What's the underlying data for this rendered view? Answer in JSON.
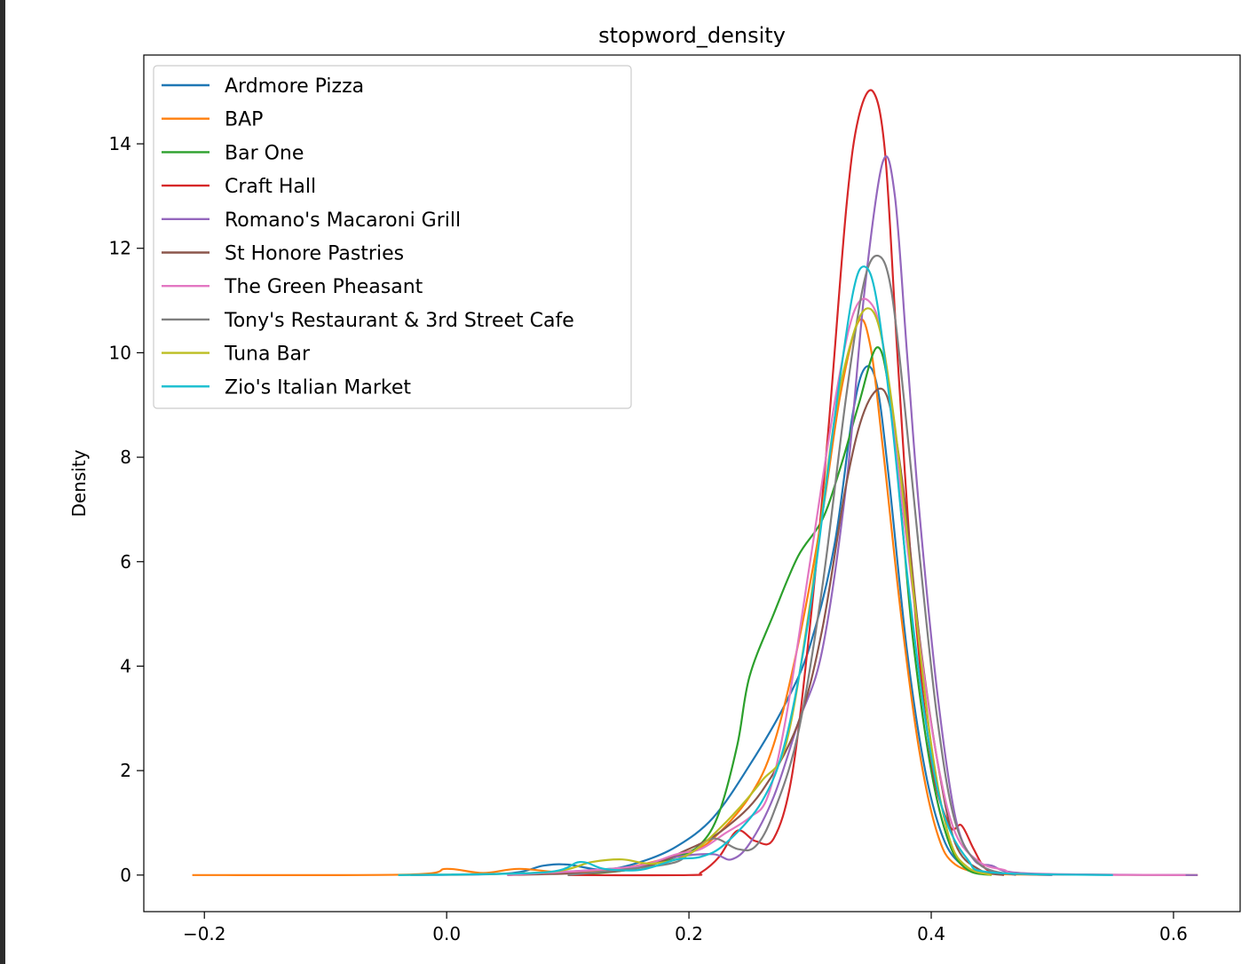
{
  "chart_data": {
    "type": "line",
    "title": "stopword_density",
    "xlabel": "",
    "ylabel": "Density",
    "xlim": [
      -0.25,
      0.655
    ],
    "ylim": [
      -0.7,
      15.7
    ],
    "xticks": [
      -0.2,
      0.0,
      0.2,
      0.4,
      0.6
    ],
    "xtick_labels": [
      "−0.2",
      "0.0",
      "0.2",
      "0.4",
      "0.6"
    ],
    "yticks": [
      0,
      2,
      4,
      6,
      8,
      10,
      12,
      14
    ],
    "ytick_labels": [
      "0",
      "2",
      "4",
      "6",
      "8",
      "10",
      "12",
      "14"
    ],
    "grid": false,
    "legend_position": "upper-left",
    "series": [
      {
        "name": "Ardmore Pizza",
        "color": "#1f77b4",
        "points": [
          [
            -0.03,
            0
          ],
          [
            0.05,
            0.03
          ],
          [
            0.08,
            0.18
          ],
          [
            0.1,
            0.2
          ],
          [
            0.13,
            0.1
          ],
          [
            0.16,
            0.25
          ],
          [
            0.19,
            0.55
          ],
          [
            0.22,
            1.1
          ],
          [
            0.25,
            2.1
          ],
          [
            0.28,
            3.3
          ],
          [
            0.3,
            4.4
          ],
          [
            0.32,
            6.3
          ],
          [
            0.335,
            8.8
          ],
          [
            0.345,
            9.7
          ],
          [
            0.355,
            9.4
          ],
          [
            0.365,
            7.6
          ],
          [
            0.38,
            4.3
          ],
          [
            0.395,
            2.0
          ],
          [
            0.41,
            0.7
          ],
          [
            0.425,
            0.2
          ],
          [
            0.44,
            0.05
          ],
          [
            0.5,
            0
          ]
        ]
      },
      {
        "name": "BAP",
        "color": "#ff7f0e",
        "points": [
          [
            -0.21,
            0
          ],
          [
            -0.03,
            0.01
          ],
          [
            0.0,
            0.12
          ],
          [
            0.03,
            0.04
          ],
          [
            0.06,
            0.12
          ],
          [
            0.1,
            0.05
          ],
          [
            0.15,
            0.15
          ],
          [
            0.2,
            0.45
          ],
          [
            0.22,
            0.7
          ],
          [
            0.25,
            1.5
          ],
          [
            0.27,
            2.5
          ],
          [
            0.29,
            4.4
          ],
          [
            0.31,
            6.9
          ],
          [
            0.325,
            9.2
          ],
          [
            0.34,
            10.6
          ],
          [
            0.35,
            10.1
          ],
          [
            0.36,
            8.2
          ],
          [
            0.375,
            5.0
          ],
          [
            0.39,
            2.4
          ],
          [
            0.405,
            0.8
          ],
          [
            0.42,
            0.2
          ],
          [
            0.45,
            0.03
          ],
          [
            0.5,
            0.01
          ],
          [
            0.62,
            0
          ]
        ]
      },
      {
        "name": "Bar One",
        "color": "#2ca02c",
        "points": [
          [
            0.1,
            0
          ],
          [
            0.15,
            0.1
          ],
          [
            0.19,
            0.35
          ],
          [
            0.21,
            0.6
          ],
          [
            0.225,
            1.2
          ],
          [
            0.24,
            2.5
          ],
          [
            0.25,
            3.8
          ],
          [
            0.27,
            5.0
          ],
          [
            0.29,
            6.1
          ],
          [
            0.31,
            6.8
          ],
          [
            0.325,
            7.8
          ],
          [
            0.34,
            9.0
          ],
          [
            0.355,
            10.1
          ],
          [
            0.365,
            9.3
          ],
          [
            0.375,
            7.0
          ],
          [
            0.385,
            4.5
          ],
          [
            0.4,
            2.0
          ],
          [
            0.415,
            0.6
          ],
          [
            0.43,
            0.1
          ],
          [
            0.45,
            0
          ]
        ]
      },
      {
        "name": "Craft Hall",
        "color": "#d62728",
        "points": [
          [
            0.1,
            0
          ],
          [
            0.2,
            0
          ],
          [
            0.21,
            0.05
          ],
          [
            0.225,
            0.35
          ],
          [
            0.24,
            0.85
          ],
          [
            0.255,
            0.65
          ],
          [
            0.27,
            0.7
          ],
          [
            0.285,
            1.9
          ],
          [
            0.3,
            4.8
          ],
          [
            0.315,
            8.5
          ],
          [
            0.33,
            12.8
          ],
          [
            0.34,
            14.5
          ],
          [
            0.352,
            15.0
          ],
          [
            0.362,
            13.8
          ],
          [
            0.372,
            10.0
          ],
          [
            0.385,
            5.5
          ],
          [
            0.4,
            2.2
          ],
          [
            0.415,
            0.95
          ],
          [
            0.425,
            0.95
          ],
          [
            0.435,
            0.5
          ],
          [
            0.445,
            0.12
          ],
          [
            0.46,
            0
          ]
        ]
      },
      {
        "name": "Romano's Macaroni Grill",
        "color": "#9467bd",
        "points": [
          [
            0.05,
            0
          ],
          [
            0.15,
            0.15
          ],
          [
            0.19,
            0.35
          ],
          [
            0.22,
            0.4
          ],
          [
            0.235,
            0.3
          ],
          [
            0.25,
            0.6
          ],
          [
            0.27,
            1.5
          ],
          [
            0.29,
            2.9
          ],
          [
            0.31,
            4.3
          ],
          [
            0.33,
            7.5
          ],
          [
            0.345,
            11.2
          ],
          [
            0.36,
            13.65
          ],
          [
            0.37,
            13.0
          ],
          [
            0.38,
            10.0
          ],
          [
            0.39,
            7.0
          ],
          [
            0.405,
            3.5
          ],
          [
            0.42,
            1.1
          ],
          [
            0.435,
            0.3
          ],
          [
            0.45,
            0.18
          ],
          [
            0.48,
            0.03
          ],
          [
            0.62,
            0
          ]
        ]
      },
      {
        "name": "St Honore Pastries",
        "color": "#8c564b",
        "points": [
          [
            0.05,
            0
          ],
          [
            0.15,
            0.1
          ],
          [
            0.2,
            0.5
          ],
          [
            0.23,
            0.9
          ],
          [
            0.26,
            1.6
          ],
          [
            0.29,
            2.9
          ],
          [
            0.31,
            4.7
          ],
          [
            0.33,
            7.5
          ],
          [
            0.345,
            8.9
          ],
          [
            0.36,
            9.3
          ],
          [
            0.37,
            8.5
          ],
          [
            0.38,
            6.8
          ],
          [
            0.39,
            4.6
          ],
          [
            0.405,
            2.2
          ],
          [
            0.42,
            0.6
          ],
          [
            0.44,
            0.1
          ],
          [
            0.46,
            0
          ]
        ]
      },
      {
        "name": "The Green Pheasant",
        "color": "#e377c2",
        "points": [
          [
            0.05,
            0
          ],
          [
            0.15,
            0.15
          ],
          [
            0.19,
            0.4
          ],
          [
            0.21,
            0.5
          ],
          [
            0.23,
            0.8
          ],
          [
            0.25,
            1.1
          ],
          [
            0.265,
            1.5
          ],
          [
            0.28,
            3.0
          ],
          [
            0.3,
            6.0
          ],
          [
            0.32,
            9.0
          ],
          [
            0.335,
            10.7
          ],
          [
            0.348,
            11.0
          ],
          [
            0.36,
            10.2
          ],
          [
            0.375,
            7.3
          ],
          [
            0.39,
            4.5
          ],
          [
            0.405,
            2.2
          ],
          [
            0.42,
            0.8
          ],
          [
            0.44,
            0.25
          ],
          [
            0.46,
            0.1
          ],
          [
            0.48,
            0.02
          ],
          [
            0.61,
            0
          ]
        ]
      },
      {
        "name": "Tony's Restaurant & 3rd Street Cafe",
        "color": "#7f7f7f",
        "points": [
          [
            0.1,
            0
          ],
          [
            0.18,
            0.2
          ],
          [
            0.2,
            0.4
          ],
          [
            0.22,
            0.7
          ],
          [
            0.24,
            0.5
          ],
          [
            0.255,
            0.55
          ],
          [
            0.27,
            1.2
          ],
          [
            0.29,
            2.7
          ],
          [
            0.31,
            5.5
          ],
          [
            0.33,
            9.2
          ],
          [
            0.345,
            11.4
          ],
          [
            0.357,
            11.85
          ],
          [
            0.367,
            11.2
          ],
          [
            0.378,
            9.0
          ],
          [
            0.39,
            6.2
          ],
          [
            0.405,
            3.0
          ],
          [
            0.42,
            1.0
          ],
          [
            0.44,
            0.2
          ],
          [
            0.47,
            0
          ]
        ]
      },
      {
        "name": "Tuna Bar",
        "color": "#bcbd22",
        "points": [
          [
            -0.04,
            0
          ],
          [
            0.08,
            0.05
          ],
          [
            0.12,
            0.25
          ],
          [
            0.145,
            0.3
          ],
          [
            0.17,
            0.22
          ],
          [
            0.2,
            0.4
          ],
          [
            0.23,
            1.0
          ],
          [
            0.26,
            1.8
          ],
          [
            0.28,
            2.5
          ],
          [
            0.3,
            5.2
          ],
          [
            0.32,
            8.7
          ],
          [
            0.335,
            10.3
          ],
          [
            0.347,
            10.85
          ],
          [
            0.358,
            10.4
          ],
          [
            0.37,
            8.6
          ],
          [
            0.385,
            5.5
          ],
          [
            0.4,
            2.5
          ],
          [
            0.415,
            0.7
          ],
          [
            0.43,
            0.15
          ],
          [
            0.45,
            0
          ]
        ]
      },
      {
        "name": "Zio's Italian Market",
        "color": "#17becf",
        "points": [
          [
            -0.04,
            0
          ],
          [
            0.08,
            0.05
          ],
          [
            0.11,
            0.25
          ],
          [
            0.13,
            0.12
          ],
          [
            0.16,
            0.1
          ],
          [
            0.19,
            0.3
          ],
          [
            0.21,
            0.35
          ],
          [
            0.23,
            0.6
          ],
          [
            0.26,
            1.4
          ],
          [
            0.28,
            2.6
          ],
          [
            0.3,
            5.1
          ],
          [
            0.32,
            8.7
          ],
          [
            0.335,
            11.1
          ],
          [
            0.345,
            11.65
          ],
          [
            0.355,
            11.0
          ],
          [
            0.368,
            8.6
          ],
          [
            0.38,
            5.8
          ],
          [
            0.395,
            3.0
          ],
          [
            0.41,
            1.2
          ],
          [
            0.43,
            0.3
          ],
          [
            0.45,
            0.05
          ],
          [
            0.55,
            0
          ]
        ]
      }
    ]
  }
}
